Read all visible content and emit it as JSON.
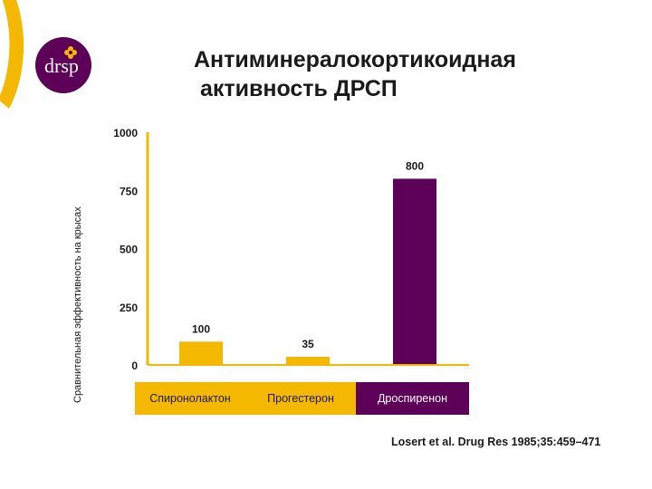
{
  "slide": {
    "title_lines": [
      "Антиминералокортикоидная",
      " активность ДРСП"
    ],
    "citation": "Losert et al. Drug Res 1985;35:459–471"
  },
  "logo": {
    "text": "drsp",
    "icon": "flower-icon"
  },
  "colors": {
    "orange": "#f5b800",
    "purple": "#5c0058",
    "axis": "#f5b800",
    "text": "#1a1a1a"
  },
  "chart_data": {
    "type": "bar",
    "title": "",
    "ylabel": "Сравнительная эффективность на крысах",
    "xlabel": "",
    "categories": [
      "Спиронолактон",
      "Прогестерон",
      "Дроспиренон"
    ],
    "values": [
      100,
      35,
      800
    ],
    "value_labels": [
      "100",
      "35",
      "800"
    ],
    "bar_colors": [
      "#f5b800",
      "#f5b800",
      "#5c0058"
    ],
    "ylim": [
      0,
      1000
    ],
    "yticks": [
      0,
      250,
      500,
      750,
      1000
    ],
    "ytick_labels": [
      "0",
      "250",
      "500",
      "750",
      "1000"
    ],
    "grid": false,
    "legend": "none"
  }
}
